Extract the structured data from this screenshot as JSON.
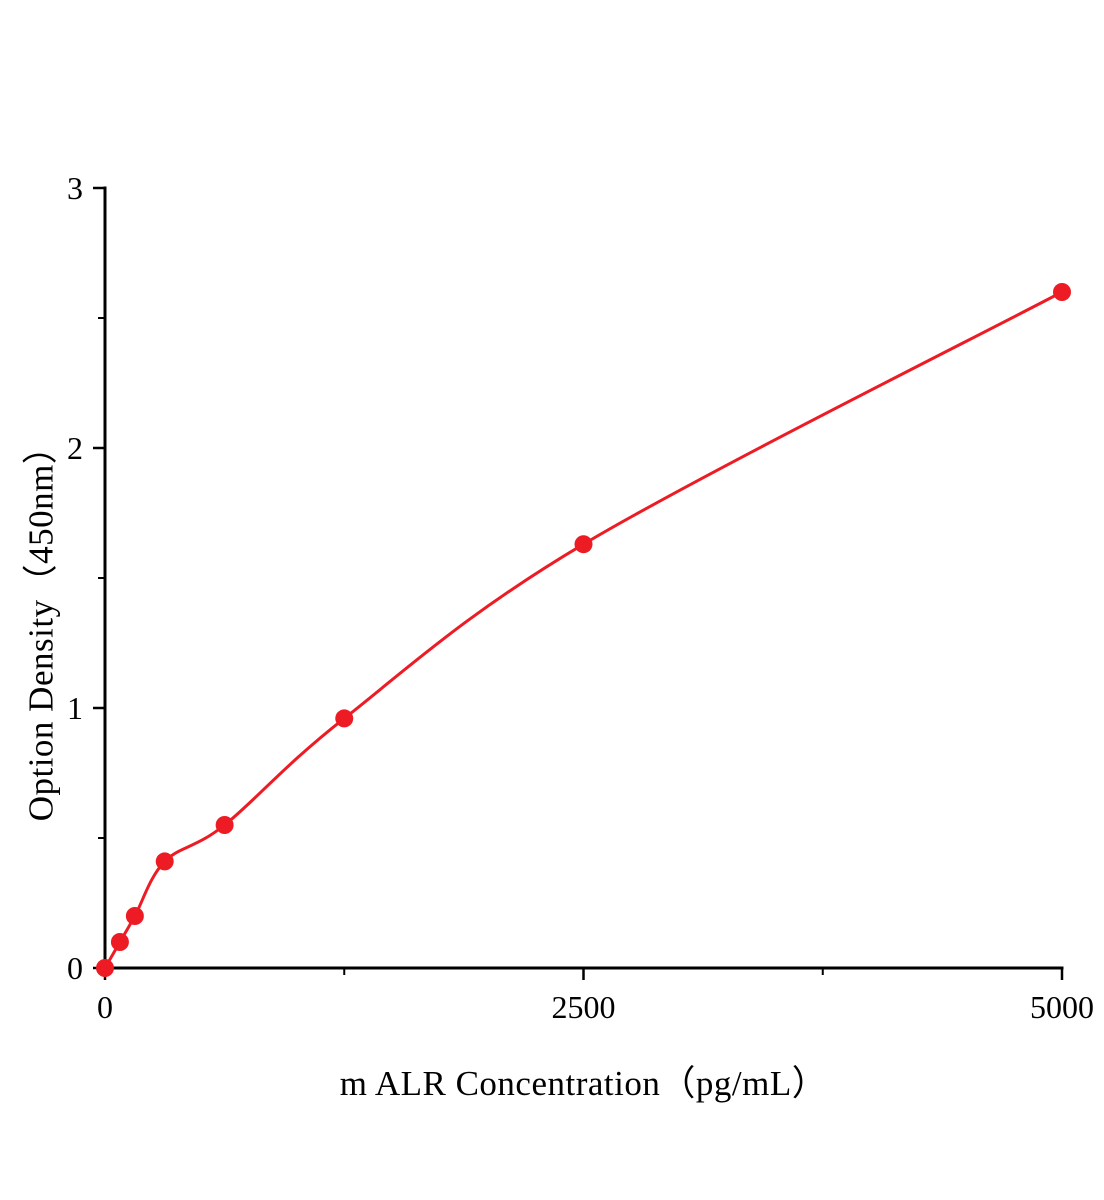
{
  "chart_data": {
    "type": "scatter",
    "title": "",
    "xlabel": "m ALR Concentration（pg/mL）",
    "ylabel": "Option Density（450nm）",
    "x": [
      0,
      78,
      156,
      312,
      625,
      1250,
      2500,
      5000
    ],
    "y": [
      0,
      0.1,
      0.2,
      0.41,
      0.55,
      0.96,
      1.63,
      2.6
    ],
    "xlim": [
      0,
      5000
    ],
    "ylim": [
      0,
      3
    ],
    "x_ticks": [
      {
        "value": 0,
        "label": "0"
      },
      {
        "value": 2500,
        "label": "2500"
      },
      {
        "value": 5000,
        "label": "5000"
      }
    ],
    "x_minor_ticks": [
      1250,
      3750
    ],
    "y_ticks": [
      {
        "value": 0,
        "label": "0"
      },
      {
        "value": 1,
        "label": "1"
      },
      {
        "value": 2,
        "label": "2"
      },
      {
        "value": 3,
        "label": "3"
      }
    ],
    "y_minor_ticks": [
      0.5,
      1.5,
      2.5
    ],
    "series_color": "#ed1c24",
    "axis_color": "#000000",
    "marker_size": 9,
    "line_width": 3,
    "grid": false,
    "legend": null
  }
}
